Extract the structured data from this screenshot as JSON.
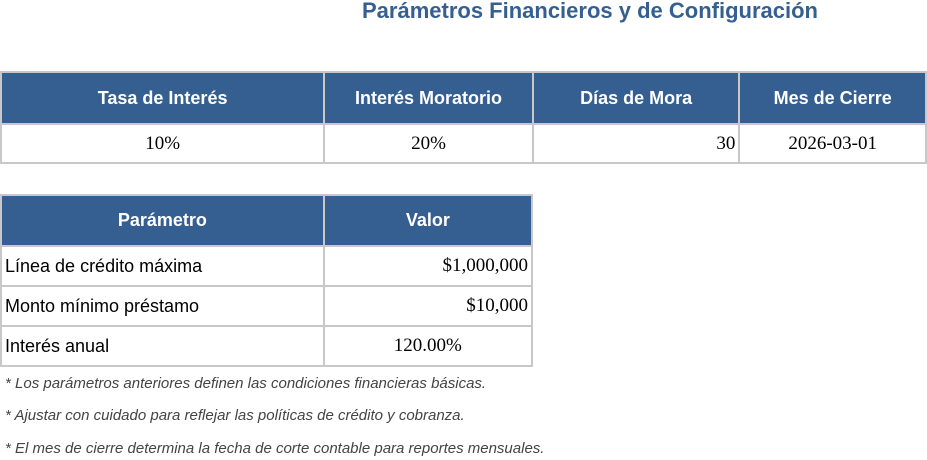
{
  "title": "Parámetros Financieros y de Configuración",
  "table1": {
    "headers": [
      "Tasa de Interés",
      "Interés Moratorio",
      "Días de Mora",
      "Mes de Cierre"
    ],
    "values": [
      "10%",
      "20%",
      "30",
      "2026-03-01"
    ]
  },
  "table2": {
    "headers": [
      "Parámetro",
      "Valor"
    ],
    "rows": [
      [
        "Línea de crédito máxima",
        "$1,000,000"
      ],
      [
        "Monto mínimo préstamo",
        "$10,000"
      ],
      [
        "Interés anual",
        "120.00%"
      ]
    ]
  },
  "notes": [
    "* Los parámetros anteriores definen las condiciones financieras básicas.",
    "* Ajustar con cuidado para reflejar las políticas de crédito y cobranza.",
    "* El mes de cierre determina la fecha de corte contable para reportes mensuales."
  ],
  "colors": {
    "header_bg": "#365f91",
    "title": "#365f91"
  }
}
